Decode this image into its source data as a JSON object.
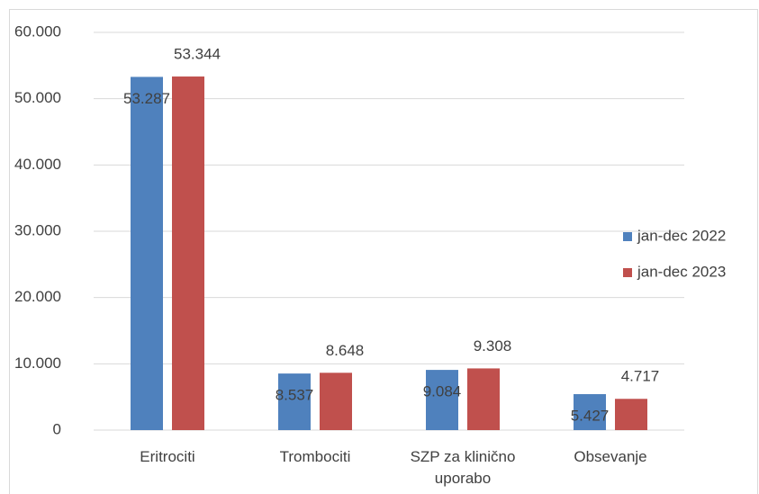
{
  "chart_data": {
    "type": "bar",
    "categories": [
      "Eritrociti",
      "Trombociti",
      "SZP za klinično uporabo",
      "Obsevanje"
    ],
    "series": [
      {
        "name": "jan-dec 2022",
        "color": "#4f81bd",
        "values": [
          53287,
          8537,
          9084,
          5427
        ],
        "value_labels": [
          "53.287",
          "8.537",
          "9.084",
          "5.427"
        ]
      },
      {
        "name": "jan-dec 2023",
        "color": "#c0504d",
        "values": [
          53344,
          8648,
          9308,
          4717
        ],
        "value_labels": [
          "53.344",
          "8.648",
          "9.308",
          "4.717"
        ]
      }
    ],
    "ylim": [
      0,
      60000
    ],
    "yticks": [
      0,
      {
        "value": 10000,
        "label": "10.000"
      },
      {
        "value": 20000,
        "label": "20.000"
      },
      {
        "value": 30000,
        "label": "30.000"
      },
      {
        "value": 40000,
        "label": "40.000"
      },
      {
        "value": 50000,
        "label": "50.000"
      },
      {
        "value": 60000,
        "label": "60.000"
      }
    ],
    "grid": true,
    "legend": "right"
  }
}
